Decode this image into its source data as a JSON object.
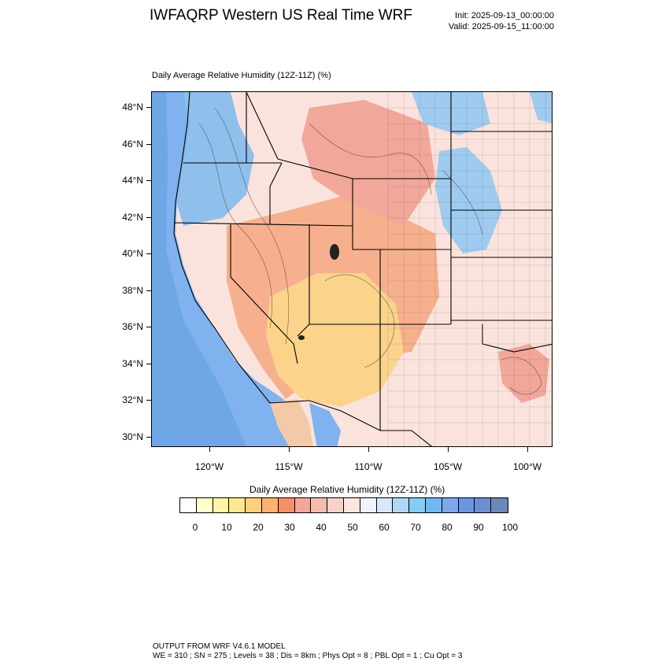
{
  "header": {
    "title": "IWFAQRP Western US Real Time WRF",
    "init": "Init: 2025-09-13_00:00:00",
    "valid": "Valid: 2025-09-15_11:00:00"
  },
  "map": {
    "title": "Daily Average Relative Humidity (12Z-11Z)   (%)",
    "lat_labels": [
      "48°N",
      "46°N",
      "44°N",
      "42°N",
      "40°N",
      "38°N",
      "36°N",
      "34°N",
      "32°N",
      "30°N"
    ],
    "lon_labels": [
      "120°W",
      "115°W",
      "110°W",
      "105°W",
      "100°W"
    ],
    "colors": {
      "ocean": "#7fb2ee",
      "ocean_deep": "#6ea6e6",
      "pacific_nw": "#8fc0ec",
      "great_basin": "#f6b08e",
      "southwest_dry": "#fbd38a",
      "rockies": "#f2a79b",
      "plains": "#fae3dc",
      "plains_moist": "#9fcbf0",
      "baja": "#f4c9a8"
    }
  },
  "colorbar": {
    "title": "Daily Average Relative Humidity (12Z-11Z)  (%)",
    "colors": [
      "#ffffff",
      "#ffffc8",
      "#fff4a8",
      "#ffe690",
      "#fdd17c",
      "#fbb370",
      "#f58f6a",
      "#f3a79a",
      "#f5bcb0",
      "#f8d2c8",
      "#fce6e0",
      "#f0f2fc",
      "#d6e8fa",
      "#aed8f6",
      "#82ccf5",
      "#6fb8f3",
      "#7fa8ec",
      "#6a97e0",
      "#6b8fd0",
      "#6a88b8"
    ],
    "labels": [
      "0",
      "10",
      "20",
      "30",
      "40",
      "50",
      "60",
      "70",
      "80",
      "90",
      "100"
    ]
  },
  "footer": {
    "line1": "OUTPUT FROM WRF V4.6.1 MODEL",
    "line2": "WE = 310 ; SN = 275 ; Levels = 38 ; Dis = 8km ; Phys Opt = 8 ; PBL Opt = 1 ; Cu Opt = 3"
  }
}
